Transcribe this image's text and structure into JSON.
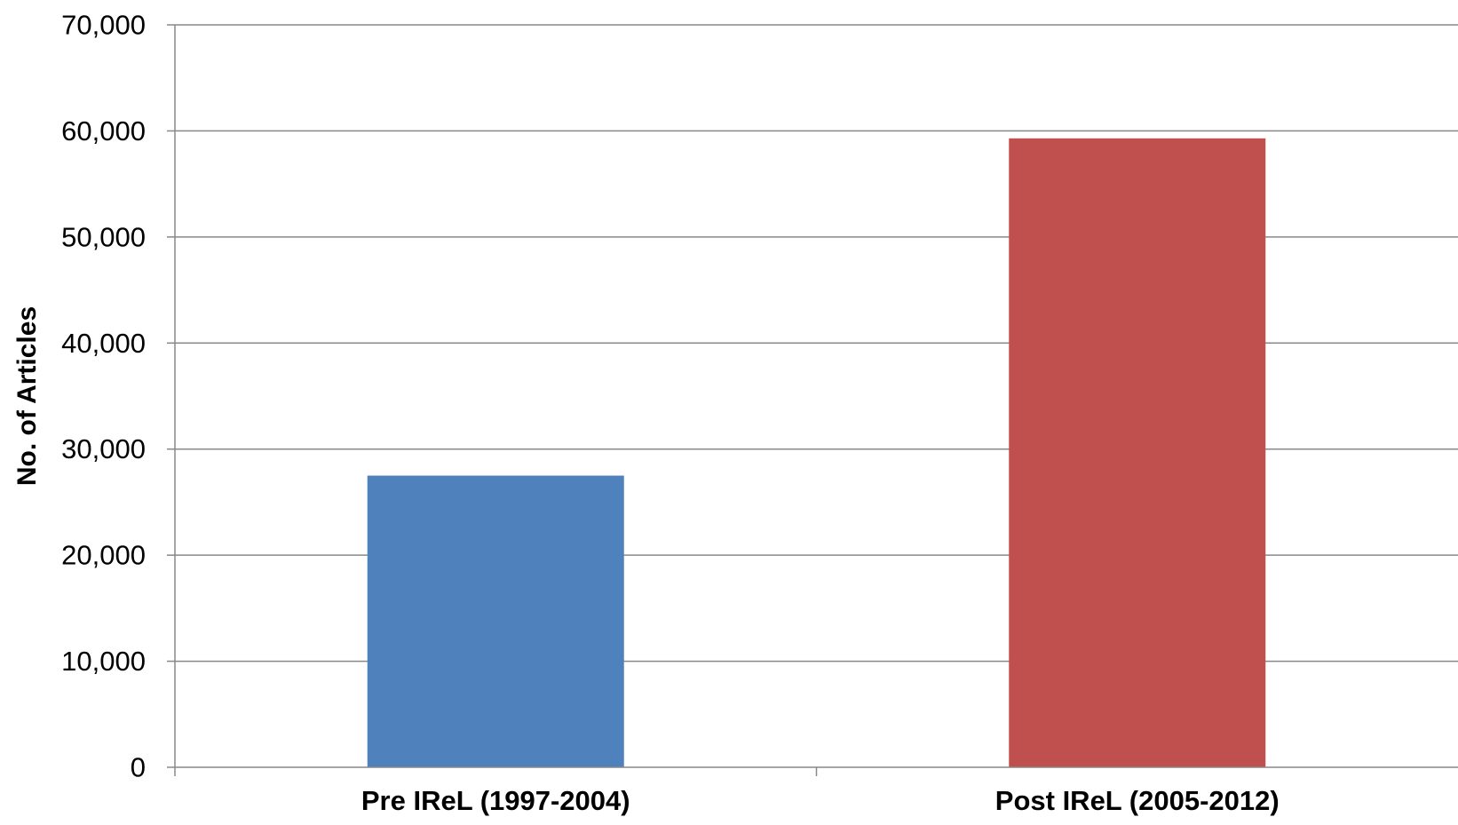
{
  "chart_data": {
    "type": "bar",
    "title": "",
    "xlabel": "",
    "ylabel": "No. of Articles",
    "categories": [
      "Pre IReL (1997-2004)",
      "Post IReL (2005-2012)"
    ],
    "values": [
      27500,
      59300
    ],
    "colors": [
      "#4F81BD",
      "#C0504D"
    ],
    "ylim": [
      0,
      70000
    ],
    "yticks": [
      0,
      10000,
      20000,
      30000,
      40000,
      50000,
      60000,
      70000
    ],
    "ytick_labels": [
      "0",
      "10,000",
      "20,000",
      "30,000",
      "40,000",
      "50,000",
      "60,000",
      "70,000"
    ],
    "grid": true,
    "gridline_color": "#888888",
    "legend": "none"
  }
}
